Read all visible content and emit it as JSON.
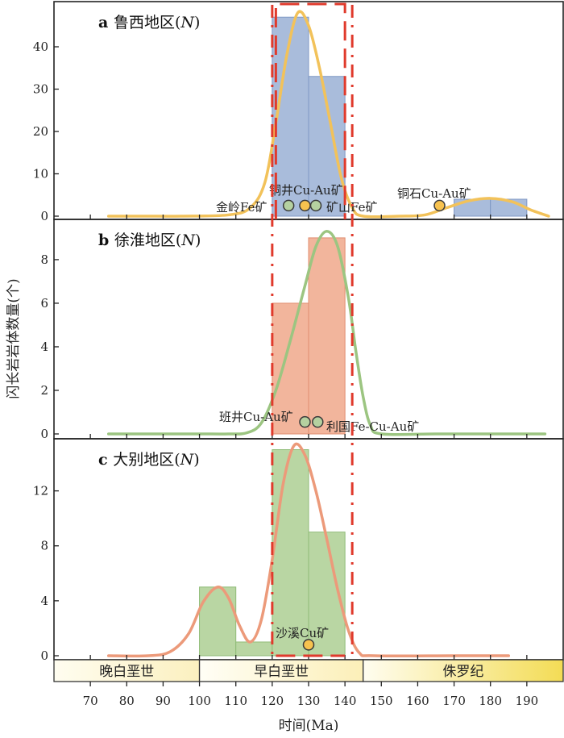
{
  "chart_data": {
    "type": "bar",
    "xlabel": "时间(Ma)",
    "ylabel": "闪长岩岩体数量(个)",
    "xlim": [
      60,
      200
    ],
    "x_ticks": [
      70,
      80,
      90,
      100,
      110,
      120,
      130,
      140,
      150,
      160,
      170,
      180,
      190
    ],
    "bin_width": 10,
    "reference_lines": {
      "dashdot": [
        120,
        142
      ],
      "dashed_box_panel_a": [
        121,
        140
      ]
    },
    "panels": [
      {
        "letter": "a",
        "title_zh": "鲁西地区",
        "title_n": "N",
        "ylim": [
          0,
          48
        ],
        "y_ticks": [
          0,
          10,
          20,
          30,
          40
        ],
        "bar_color": "#a9bcdb",
        "bar_edge": "#7f98c4",
        "curve_color": "#f2c25a",
        "bins": [
          {
            "start": 120,
            "value": 47
          },
          {
            "start": 130,
            "value": 33
          },
          {
            "start": 170,
            "value": 4
          },
          {
            "start": 180,
            "value": 4
          }
        ],
        "curve": [
          [
            75,
            0
          ],
          [
            85,
            0
          ],
          [
            95,
            0
          ],
          [
            108,
            0.3
          ],
          [
            114,
            2
          ],
          [
            118,
            8
          ],
          [
            121,
            22
          ],
          [
            124,
            38
          ],
          [
            127,
            48
          ],
          [
            130,
            45
          ],
          [
            133,
            35
          ],
          [
            136,
            22
          ],
          [
            139,
            9
          ],
          [
            142,
            2
          ],
          [
            145,
            0
          ],
          [
            155,
            0
          ],
          [
            162,
            0.3
          ],
          [
            168,
            2
          ],
          [
            174,
            3.6
          ],
          [
            180,
            4.2
          ],
          [
            186,
            3.4
          ],
          [
            191,
            1.5
          ],
          [
            196,
            0
          ]
        ],
        "deposits": [
          {
            "label": "金岭Fe矿",
            "age": 124.5,
            "value": 2.5,
            "color": "#b5d1a0"
          },
          {
            "label": "铜井Cu-Au矿",
            "age": 129,
            "value": 2.5,
            "color": "#f7c24f"
          },
          {
            "label": "矿山Fe矿",
            "age": 132,
            "value": 2.5,
            "color": "#b5d1a0"
          },
          {
            "label": "铜石Cu-Au矿",
            "age": 166,
            "value": 2.5,
            "color": "#f7c24f"
          }
        ]
      },
      {
        "letter": "b",
        "title_zh": "徐淮地区",
        "title_n": "N",
        "ylim": [
          0,
          9.7
        ],
        "y_ticks": [
          0,
          2,
          4,
          6,
          8
        ],
        "bar_color": "#f2b59c",
        "bar_edge": "#e08d6f",
        "curve_color": "#9cc581",
        "bins": [
          {
            "start": 120,
            "value": 6
          },
          {
            "start": 130,
            "value": 9
          }
        ],
        "curve": [
          [
            75,
            0
          ],
          [
            90,
            0
          ],
          [
            100,
            0
          ],
          [
            108,
            0
          ],
          [
            113,
            0.05
          ],
          [
            117,
            0.5
          ],
          [
            121,
            2.0
          ],
          [
            125,
            4.3
          ],
          [
            129,
            6.8
          ],
          [
            132,
            8.6
          ],
          [
            135,
            9.3
          ],
          [
            138,
            8.6
          ],
          [
            141,
            6.2
          ],
          [
            143,
            3.8
          ],
          [
            145,
            1.7
          ],
          [
            147,
            0.4
          ],
          [
            150,
            0
          ],
          [
            165,
            0
          ],
          [
            180,
            0
          ],
          [
            195,
            0
          ]
        ],
        "deposits": [
          {
            "label": "班井Cu-Au矿",
            "age": 129,
            "value": 0.55,
            "color": "#b5d1a0"
          },
          {
            "label": "利国Fe-Cu-Au矿",
            "age": 132.5,
            "value": 0.55,
            "color": "#b5d1a0"
          }
        ]
      },
      {
        "letter": "c",
        "title_zh": "大别地区",
        "title_n": "N",
        "ylim": [
          0,
          15.5
        ],
        "y_ticks": [
          0,
          4,
          8,
          12
        ],
        "bar_color": "#b9d6a3",
        "bar_edge": "#8fbb77",
        "curve_color": "#ec9a7a",
        "bins": [
          {
            "start": 100,
            "value": 5
          },
          {
            "start": 110,
            "value": 1
          },
          {
            "start": 120,
            "value": 15
          },
          {
            "start": 130,
            "value": 9
          }
        ],
        "curve": [
          [
            75,
            0
          ],
          [
            86,
            0
          ],
          [
            92,
            0.3
          ],
          [
            97,
            1.6
          ],
          [
            101,
            3.9
          ],
          [
            105,
            5.0
          ],
          [
            108,
            4.2
          ],
          [
            111,
            2.2
          ],
          [
            114,
            1.0
          ],
          [
            117,
            2.6
          ],
          [
            120,
            7.0
          ],
          [
            123,
            12.5
          ],
          [
            126,
            15.3
          ],
          [
            129,
            14.6
          ],
          [
            132,
            12.0
          ],
          [
            135,
            8.5
          ],
          [
            138,
            4.8
          ],
          [
            141,
            1.8
          ],
          [
            144,
            0.2
          ],
          [
            148,
            0
          ],
          [
            170,
            0
          ],
          [
            185,
            0
          ]
        ],
        "deposits": [
          {
            "label": "沙溪Cu矿",
            "age": 130,
            "value": 0.8,
            "color": "#f7c24f"
          }
        ]
      }
    ],
    "periods": [
      {
        "label": "晚白垩世",
        "start": 60,
        "end": 100
      },
      {
        "label": "早白垩世",
        "start": 100,
        "end": 145
      },
      {
        "label": "侏罗纪",
        "start": 145,
        "end": 200
      }
    ]
  }
}
